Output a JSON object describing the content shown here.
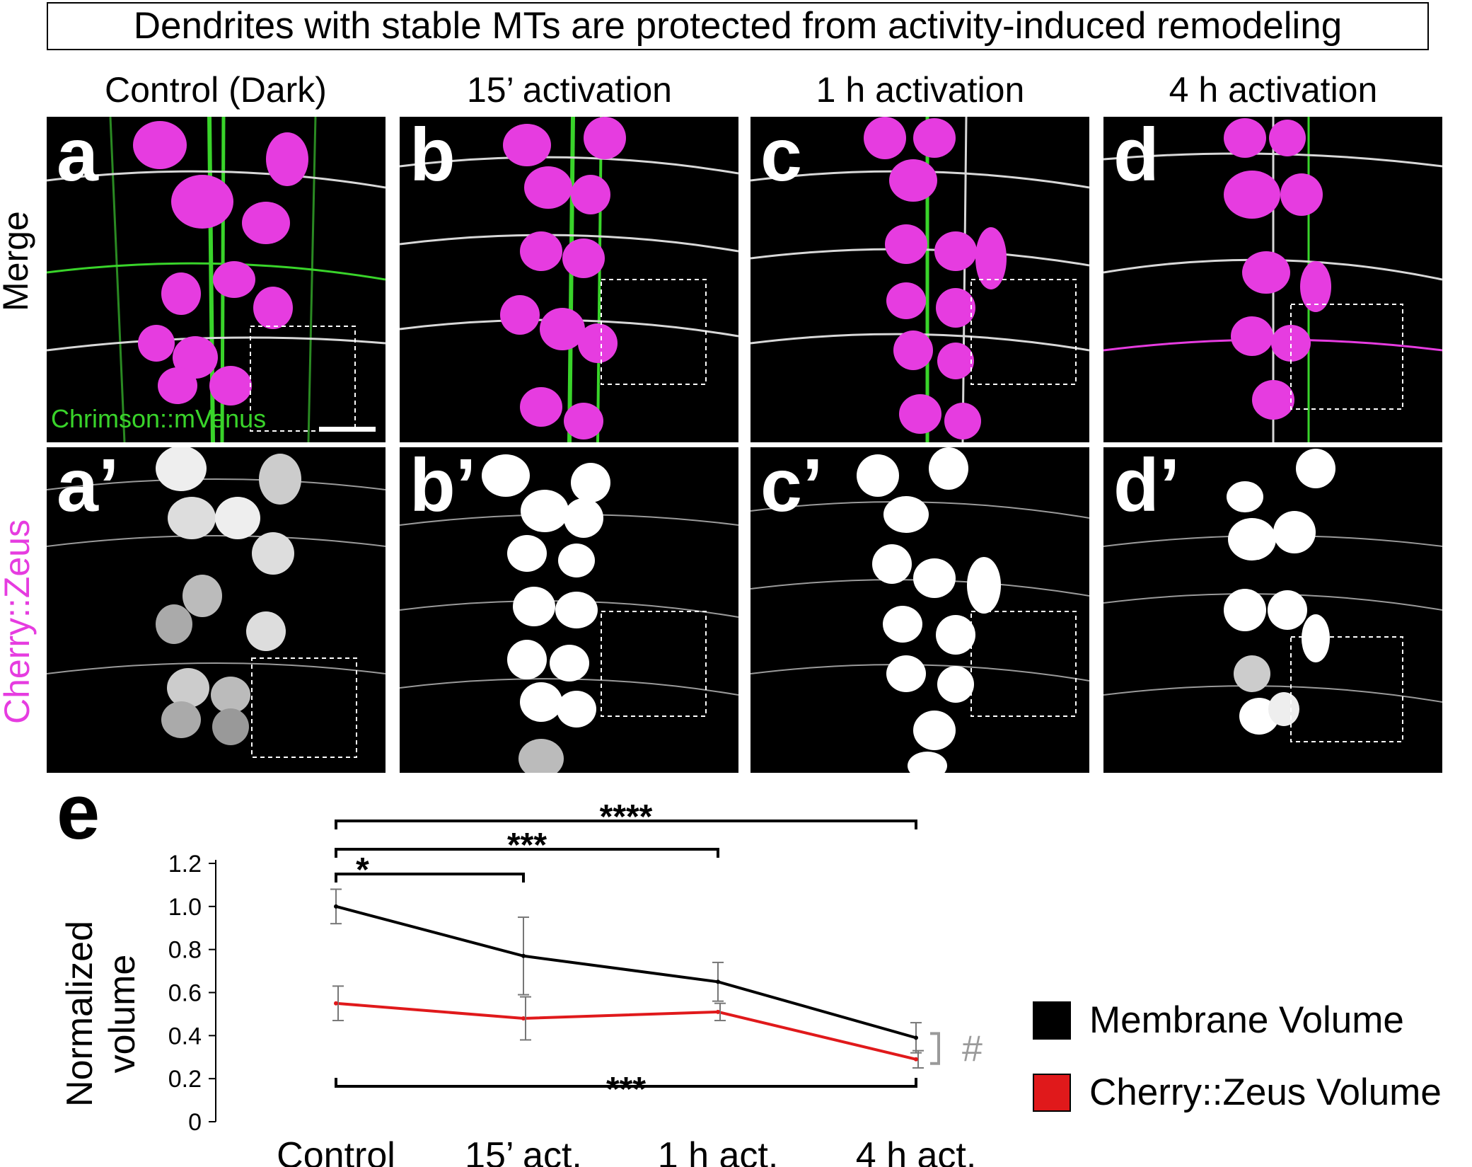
{
  "figure": {
    "title": "Dendrites with stable MTs are protected from activity-induced remodeling",
    "columns": [
      "Control (Dark)",
      "15’ activation",
      "1 h activation",
      "4 h activation"
    ],
    "rows": {
      "merge_label": "Merge",
      "zeus_label": "Cherry::Zeus"
    },
    "panels_top": [
      "a",
      "b",
      "c",
      "d"
    ],
    "panels_bottom": [
      "a’",
      "b’",
      "c’",
      "d’"
    ],
    "chrimson_label": "Chrimson::mVenus",
    "colors": {
      "green": "#39d42a",
      "magenta": "#e63ce0",
      "membrane": "#000000",
      "zeus": "#e0191b",
      "hash": "#9a9a9a"
    },
    "panel_e_label": "e",
    "hash_label": "#"
  },
  "chart_data": {
    "type": "line",
    "categories": [
      "Control",
      "15’ act.",
      "1 h act.",
      "4 h act."
    ],
    "ylabel": "Normalized volume",
    "ylim": [
      0,
      1.2
    ],
    "yticks": [
      "0",
      "0.2",
      "0.4",
      "0.6",
      "0.8",
      "1.0",
      "1.2"
    ],
    "series": [
      {
        "name": "Membrane Volume",
        "values": [
          1.0,
          0.77,
          0.65,
          0.39
        ],
        "errors": [
          0.08,
          0.18,
          0.09,
          0.07
        ]
      },
      {
        "name": "Cherry::Zeus Volume",
        "values": [
          0.55,
          0.48,
          0.51,
          0.29
        ],
        "errors": [
          0.08,
          0.1,
          0.04,
          0.04
        ]
      }
    ],
    "significance": [
      {
        "from": 0,
        "to": 3,
        "label": "****"
      },
      {
        "from": 0,
        "to": 2,
        "label": "***"
      },
      {
        "from": 0,
        "to": 1,
        "label": "*"
      },
      {
        "from": 0,
        "to": 3,
        "label": "***"
      }
    ]
  }
}
